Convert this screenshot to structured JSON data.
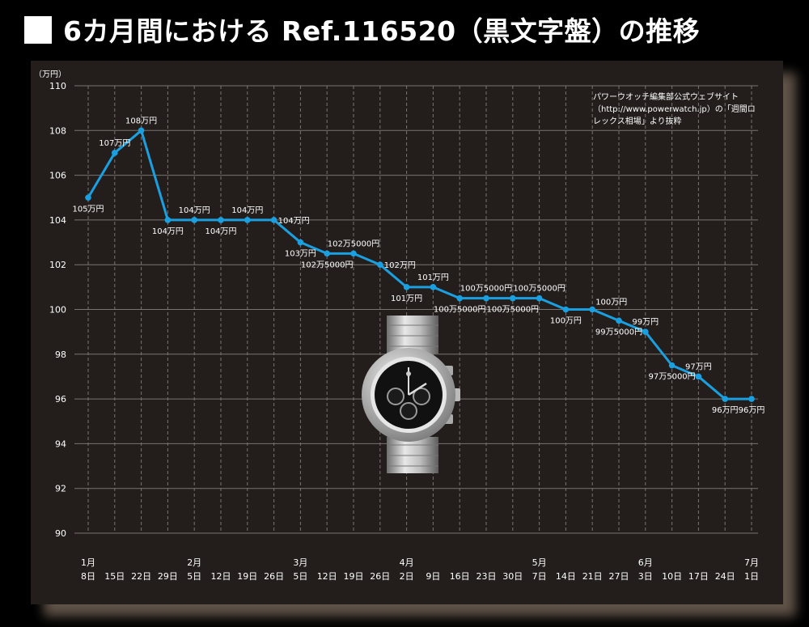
{
  "title": "6カ月間における Ref.116520（黒文字盤）の推移",
  "note": "パワーウオッチ編集部公式ウェブサイト（http://www.powerwatch.jp）の「週間ロレックス相場」より抜粋",
  "colors": {
    "line": "#1aa0e0",
    "grid": "#7a7470",
    "background": "#231e1c",
    "text": "#ffffff"
  },
  "chart_data": {
    "type": "line",
    "title": "6カ月間における Ref.116520（黒文字盤）の推移",
    "ylabel": "（万円）",
    "ylim": [
      90,
      110
    ],
    "yticks": [
      90,
      92,
      94,
      96,
      98,
      100,
      102,
      104,
      106,
      108,
      110
    ],
    "grid": true,
    "categories": [
      {
        "month": "1月",
        "day": "8日"
      },
      {
        "month": "",
        "day": "15日"
      },
      {
        "month": "",
        "day": "22日"
      },
      {
        "month": "",
        "day": "29日"
      },
      {
        "month": "2月",
        "day": "5日"
      },
      {
        "month": "",
        "day": "12日"
      },
      {
        "month": "",
        "day": "19日"
      },
      {
        "month": "",
        "day": "26日"
      },
      {
        "month": "3月",
        "day": "5日"
      },
      {
        "month": "",
        "day": "12日"
      },
      {
        "month": "",
        "day": "19日"
      },
      {
        "month": "",
        "day": "26日"
      },
      {
        "month": "4月",
        "day": "2日"
      },
      {
        "month": "",
        "day": "9日"
      },
      {
        "month": "",
        "day": "16日"
      },
      {
        "month": "",
        "day": "23日"
      },
      {
        "month": "",
        "day": "30日"
      },
      {
        "month": "5月",
        "day": "7日"
      },
      {
        "month": "",
        "day": "14日"
      },
      {
        "month": "",
        "day": "21日"
      },
      {
        "month": "",
        "day": "27日"
      },
      {
        "month": "6月",
        "day": "3日"
      },
      {
        "month": "",
        "day": "10日"
      },
      {
        "month": "",
        "day": "17日"
      },
      {
        "month": "",
        "day": "24日"
      },
      {
        "month": "7月",
        "day": "1日"
      }
    ],
    "values": [
      105,
      107,
      108,
      104,
      104,
      104,
      104,
      104,
      103,
      102.5,
      102.5,
      102,
      101,
      101,
      100.5,
      100.5,
      100.5,
      100.5,
      100,
      100,
      99.5,
      99,
      97.5,
      97,
      96,
      96
    ],
    "data_labels": [
      {
        "text": "105万円",
        "pos": "below"
      },
      {
        "text": "107万円",
        "pos": "above"
      },
      {
        "text": "108万円",
        "pos": "above"
      },
      {
        "text": "104万円",
        "pos": "below"
      },
      {
        "text": "104万円",
        "pos": "above"
      },
      {
        "text": "104万円",
        "pos": "below"
      },
      {
        "text": "104万円",
        "pos": "above"
      },
      {
        "text": "104万円",
        "pos": "right"
      },
      {
        "text": "103万円",
        "pos": "below"
      },
      {
        "text": "102万5000円",
        "pos": "below"
      },
      {
        "text": "102万5000円",
        "pos": "above"
      },
      {
        "text": "102万円",
        "pos": "right"
      },
      {
        "text": "101万円",
        "pos": "below"
      },
      {
        "text": "101万円",
        "pos": "above"
      },
      {
        "text": "100万5000円",
        "pos": "below"
      },
      {
        "text": "100万5000円",
        "pos": "above"
      },
      {
        "text": "100万5000円",
        "pos": "below"
      },
      {
        "text": "100万5000円",
        "pos": "above"
      },
      {
        "text": "100万円",
        "pos": "below"
      },
      {
        "text": "100万円",
        "pos": "above-right"
      },
      {
        "text": "99万5000円",
        "pos": "below"
      },
      {
        "text": "99万円",
        "pos": "above"
      },
      {
        "text": "97万5000円",
        "pos": "below"
      },
      {
        "text": "97万円",
        "pos": "above"
      },
      {
        "text": "96万円",
        "pos": "below"
      },
      {
        "text": "96万円",
        "pos": "below"
      }
    ]
  }
}
